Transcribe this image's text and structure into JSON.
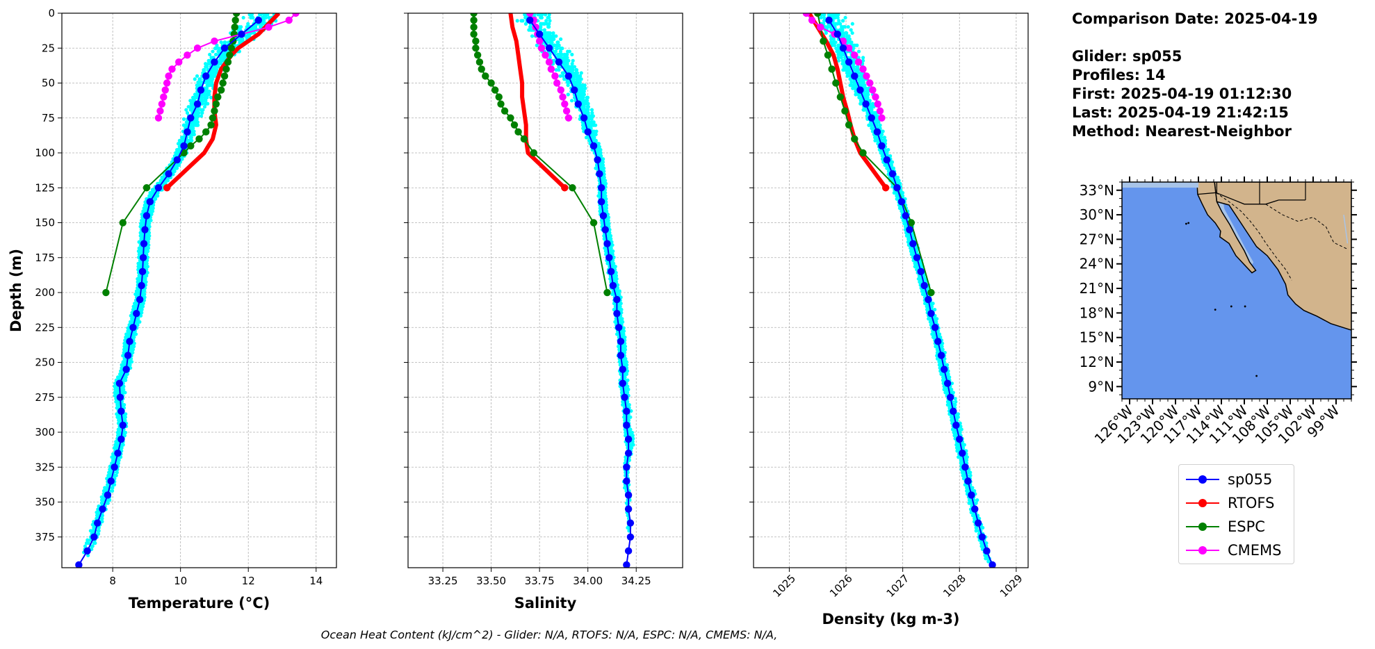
{
  "info": {
    "comparison_date": "Comparison Date: 2025-04-19",
    "glider": "Glider: sp055",
    "profiles": "Profiles: 14",
    "first": "First: 2025-04-19 01:12:30",
    "last": "Last: 2025-04-19 21:42:15",
    "method": "Method: Nearest-Neighbor"
  },
  "footer": "Ocean Heat Content (kJ/cm^2) - Glider: N/A,  RTOFS: N/A,  ESPC: N/A,  CMEMS: N/A,",
  "legend": [
    {
      "name": "sp055",
      "color": "#0000ff"
    },
    {
      "name": "RTOFS",
      "color": "#ff0000"
    },
    {
      "name": "ESPC",
      "color": "#008000"
    },
    {
      "name": "CMEMS",
      "color": "#ff00ff"
    }
  ],
  "colors": {
    "glider_raw": "#00ffff",
    "ocean": "#6495ed",
    "land": "#d2b48c",
    "shelf": "#a8c4e8"
  },
  "chart_data": [
    {
      "type": "line",
      "xlabel": "Temperature (°C)",
      "ylabel": "Depth (m)",
      "xlim": [
        6.5,
        14.6
      ],
      "ylim": [
        397,
        0
      ],
      "xticks": [
        8,
        10,
        12,
        14
      ],
      "yticks": [
        0,
        25,
        50,
        75,
        100,
        125,
        150,
        175,
        200,
        225,
        250,
        275,
        300,
        325,
        350,
        375
      ],
      "grid": true,
      "series": [
        {
          "name": "sp055",
          "color": "#0000ff",
          "depth": [
            5,
            15,
            25,
            35,
            45,
            55,
            65,
            75,
            85,
            95,
            105,
            115,
            125,
            135,
            145,
            155,
            165,
            175,
            185,
            195,
            205,
            215,
            225,
            235,
            245,
            255,
            265,
            275,
            285,
            295,
            305,
            315,
            325,
            335,
            345,
            355,
            365,
            375,
            385,
            395
          ],
          "values": [
            12.3,
            11.8,
            11.3,
            11.0,
            10.75,
            10.6,
            10.5,
            10.3,
            10.2,
            10.1,
            9.9,
            9.65,
            9.35,
            9.1,
            9.0,
            8.95,
            8.92,
            8.9,
            8.88,
            8.85,
            8.8,
            8.7,
            8.6,
            8.5,
            8.45,
            8.4,
            8.2,
            8.22,
            8.25,
            8.3,
            8.25,
            8.15,
            8.05,
            7.95,
            7.85,
            7.7,
            7.55,
            7.45,
            7.25,
            7.0
          ]
        },
        {
          "name": "RTOFS",
          "color": "#ff0000",
          "depth": [
            0,
            5,
            10,
            15,
            20,
            25,
            30,
            40,
            50,
            60,
            70,
            80,
            90,
            100,
            125
          ],
          "values": [
            12.9,
            12.7,
            12.5,
            12.3,
            12.0,
            11.7,
            11.5,
            11.2,
            11.05,
            11.0,
            11.0,
            11.05,
            10.95,
            10.7,
            9.6
          ]
        },
        {
          "name": "ESPC",
          "color": "#008000",
          "depth": [
            0,
            5,
            10,
            15,
            20,
            25,
            30,
            35,
            40,
            45,
            50,
            55,
            60,
            65,
            70,
            75,
            80,
            85,
            90,
            95,
            100,
            125,
            150,
            200
          ],
          "values": [
            11.65,
            11.62,
            11.6,
            11.58,
            11.55,
            11.5,
            11.45,
            11.4,
            11.35,
            11.3,
            11.25,
            11.2,
            11.1,
            11.05,
            11.0,
            10.95,
            10.9,
            10.75,
            10.55,
            10.3,
            10.1,
            9.0,
            8.3,
            7.8
          ]
        },
        {
          "name": "CMEMS",
          "color": "#ff00ff",
          "depth": [
            0,
            5,
            10,
            15,
            20,
            25,
            30,
            35,
            40,
            45,
            50,
            55,
            60,
            65,
            70,
            75
          ],
          "values": [
            13.4,
            13.2,
            12.6,
            11.8,
            11.0,
            10.5,
            10.2,
            9.95,
            9.75,
            9.65,
            9.6,
            9.55,
            9.5,
            9.45,
            9.4,
            9.35
          ]
        }
      ]
    },
    {
      "type": "line",
      "xlabel": "Salinity",
      "ylabel": "",
      "xlim": [
        33.07,
        34.49
      ],
      "ylim": [
        397,
        0
      ],
      "xticks": [
        33.25,
        33.5,
        33.75,
        34.0,
        34.25
      ],
      "xtick_labels": [
        "33.25",
        "33.50",
        "33.75",
        "34.00",
        "34.25"
      ],
      "grid": true,
      "series": [
        {
          "name": "sp055",
          "color": "#0000ff",
          "depth": [
            5,
            15,
            25,
            35,
            45,
            55,
            65,
            75,
            85,
            95,
            105,
            115,
            125,
            135,
            145,
            155,
            165,
            175,
            185,
            195,
            205,
            215,
            225,
            235,
            245,
            255,
            265,
            275,
            285,
            295,
            305,
            315,
            325,
            335,
            345,
            355,
            365,
            375,
            385,
            395
          ],
          "values": [
            33.7,
            33.75,
            33.8,
            33.85,
            33.9,
            33.93,
            33.95,
            33.98,
            34.0,
            34.03,
            34.05,
            34.06,
            34.07,
            34.07,
            34.08,
            34.09,
            34.1,
            34.11,
            34.12,
            34.13,
            34.15,
            34.15,
            34.16,
            34.17,
            34.17,
            34.18,
            34.18,
            34.19,
            34.2,
            34.2,
            34.21,
            34.21,
            34.2,
            34.2,
            34.21,
            34.21,
            34.22,
            34.22,
            34.21,
            34.2
          ]
        },
        {
          "name": "RTOFS",
          "color": "#ff0000",
          "depth": [
            0,
            10,
            20,
            30,
            40,
            50,
            60,
            70,
            80,
            90,
            100,
            125
          ],
          "values": [
            33.6,
            33.61,
            33.63,
            33.64,
            33.65,
            33.66,
            33.66,
            33.67,
            33.68,
            33.68,
            33.69,
            33.88
          ]
        },
        {
          "name": "ESPC",
          "color": "#008000",
          "depth": [
            0,
            5,
            10,
            15,
            20,
            25,
            30,
            35,
            40,
            45,
            50,
            55,
            60,
            65,
            70,
            75,
            80,
            85,
            90,
            100,
            125,
            150,
            200
          ],
          "values": [
            33.41,
            33.41,
            33.41,
            33.41,
            33.42,
            33.42,
            33.43,
            33.44,
            33.45,
            33.47,
            33.5,
            33.52,
            33.54,
            33.55,
            33.57,
            33.6,
            33.62,
            33.64,
            33.67,
            33.72,
            33.92,
            34.03,
            34.1
          ]
        },
        {
          "name": "CMEMS",
          "color": "#ff00ff",
          "depth": [
            0,
            5,
            10,
            15,
            20,
            25,
            30,
            35,
            40,
            45,
            50,
            55,
            60,
            65,
            70,
            75
          ],
          "values": [
            33.7,
            33.72,
            33.73,
            33.74,
            33.75,
            33.76,
            33.78,
            33.8,
            33.81,
            33.83,
            33.84,
            33.86,
            33.87,
            33.88,
            33.89,
            33.9
          ]
        }
      ]
    },
    {
      "type": "line",
      "xlabel": "Density (kg m-3)",
      "ylabel": "",
      "xlim": [
        1024.37,
        1029.21
      ],
      "ylim": [
        397,
        0
      ],
      "xticks": [
        1025,
        1026,
        1027,
        1028,
        1029
      ],
      "grid": true,
      "series": [
        {
          "name": "sp055",
          "color": "#0000ff",
          "depth": [
            5,
            15,
            25,
            35,
            45,
            55,
            65,
            75,
            85,
            95,
            105,
            115,
            125,
            135,
            145,
            155,
            165,
            175,
            185,
            195,
            205,
            215,
            225,
            235,
            245,
            255,
            265,
            275,
            285,
            295,
            305,
            315,
            325,
            335,
            345,
            355,
            365,
            375,
            385,
            395
          ],
          "values": [
            1025.7,
            1025.85,
            1025.95,
            1026.05,
            1026.15,
            1026.25,
            1026.35,
            1026.45,
            1026.55,
            1026.63,
            1026.72,
            1026.82,
            1026.9,
            1026.98,
            1027.05,
            1027.12,
            1027.18,
            1027.25,
            1027.32,
            1027.38,
            1027.45,
            1027.5,
            1027.57,
            1027.62,
            1027.68,
            1027.73,
            1027.79,
            1027.84,
            1027.89,
            1027.94,
            1028.0,
            1028.05,
            1028.1,
            1028.15,
            1028.21,
            1028.27,
            1028.33,
            1028.4,
            1028.48,
            1028.58
          ]
        },
        {
          "name": "RTOFS",
          "color": "#ff0000",
          "depth": [
            0,
            10,
            20,
            30,
            40,
            50,
            60,
            70,
            80,
            90,
            100,
            125
          ],
          "values": [
            1025.35,
            1025.5,
            1025.65,
            1025.78,
            1025.85,
            1025.9,
            1025.95,
            1026.02,
            1026.08,
            1026.15,
            1026.25,
            1026.7
          ]
        },
        {
          "name": "ESPC",
          "color": "#008000",
          "depth": [
            0,
            10,
            20,
            30,
            40,
            50,
            60,
            70,
            80,
            90,
            100,
            125,
            150,
            200
          ],
          "values": [
            1025.5,
            1025.55,
            1025.6,
            1025.68,
            1025.75,
            1025.82,
            1025.9,
            1025.98,
            1026.05,
            1026.15,
            1026.3,
            1026.9,
            1027.15,
            1027.5
          ]
        },
        {
          "name": "CMEMS",
          "color": "#ff00ff",
          "depth": [
            0,
            5,
            10,
            15,
            20,
            25,
            30,
            35,
            40,
            45,
            50,
            55,
            60,
            65,
            70,
            75
          ],
          "values": [
            1025.3,
            1025.4,
            1025.55,
            1025.8,
            1025.95,
            1026.05,
            1026.15,
            1026.22,
            1026.3,
            1026.36,
            1026.42,
            1026.47,
            1026.52,
            1026.56,
            1026.6,
            1026.63
          ]
        }
      ]
    },
    {
      "type": "map",
      "xlabel": "",
      "ylabel": "",
      "lon_range": [
        -127,
        -97
      ],
      "lat_range": [
        7.5,
        34
      ],
      "lon_ticks": [
        "126°W",
        "123°W",
        "120°W",
        "117°W",
        "114°W",
        "111°W",
        "108°W",
        "105°W",
        "102°W",
        "99°W"
      ],
      "lat_ticks": [
        "33°N",
        "30°N",
        "27°N",
        "24°N",
        "21°N",
        "18°N",
        "15°N",
        "12°N",
        "9°N"
      ]
    }
  ]
}
